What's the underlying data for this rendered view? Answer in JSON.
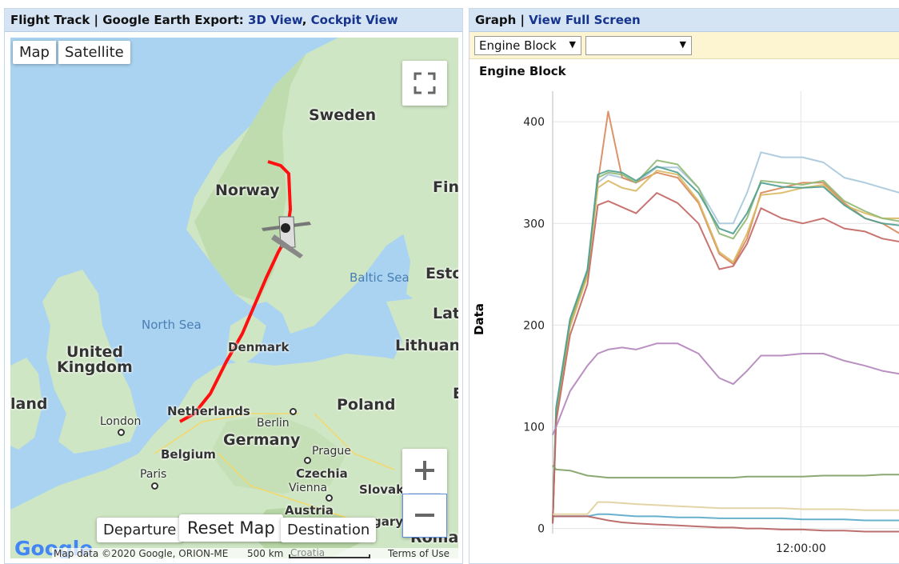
{
  "left_panel": {
    "header_prefix": "Flight Track | Google Earth Export: ",
    "link_3d": "3D View",
    "separator": ", ",
    "link_cockpit": "Cockpit View"
  },
  "map": {
    "map_type_map": "Map",
    "map_type_satellite": "Satellite",
    "fullscreen_icon": "fullscreen-icon",
    "zoom_in_icon": "plus-icon",
    "zoom_out_icon": "minus-icon",
    "departure_label": "Departure",
    "reset_label": "Reset Map",
    "destination_label": "Destination",
    "logo_text": "Google",
    "attribution_data": "Map data ©2020 Google, ORION-ME",
    "scale_label": "500 km",
    "terms": "Terms of Use",
    "labels": {
      "sweden": "Sweden",
      "norway": "Norway",
      "finland": "Finl",
      "estonia": "Esto",
      "latvia": "Latv",
      "lithuania": "Lithuania",
      "baltic_sea": "Baltic Sea",
      "north_sea": "North Sea",
      "denmark": "Denmark",
      "united_kingdom_1": "United",
      "united_kingdom_2": "Kingdom",
      "ireland": "land",
      "london": "London",
      "netherlands": "Netherlands",
      "berlin": "Berlin",
      "germany": "Germany",
      "poland": "Poland",
      "belgium": "Belgium",
      "paris": "Paris",
      "prague": "Prague",
      "czechia": "Czechia",
      "vienna": "Vienna",
      "slovakia": "Slovaki",
      "austria": "Austria",
      "hungary": "gary",
      "croatia": "Croatia",
      "romania": "Roman",
      "edge_e": "E"
    },
    "colors": {
      "water": "#a9d3f1",
      "land": "#cfe6c4",
      "track": "#ff1010"
    }
  },
  "right_panel": {
    "header_prefix": "Graph | ",
    "link_fullscreen": "View Full Screen",
    "select_1_value": "Engine Block",
    "select_2_value": "",
    "dropdown_icon": "triangle-down-icon"
  },
  "chart_data": {
    "type": "line",
    "title": "Engine Block",
    "ylabel": "Data",
    "xlabel": "",
    "ylim": [
      -5,
      430
    ],
    "yticks": [
      0,
      100,
      200,
      300,
      400
    ],
    "x_tick_label": "12:00:00",
    "x_tick_pos": 0.715,
    "grid": true,
    "legend": "none",
    "x": [
      0,
      0.01,
      0.05,
      0.1,
      0.13,
      0.16,
      0.2,
      0.24,
      0.3,
      0.36,
      0.42,
      0.48,
      0.52,
      0.56,
      0.6,
      0.66,
      0.72,
      0.78,
      0.84,
      0.9,
      0.95,
      1.0
    ],
    "series": [
      {
        "color": "#a6c8dc",
        "values": [
          5,
          120,
          205,
          255,
          340,
          348,
          345,
          340,
          355,
          355,
          335,
          300,
          300,
          330,
          370,
          365,
          365,
          360,
          345,
          340,
          335,
          330
        ]
      },
      {
        "color": "#d8875a",
        "values": [
          5,
          110,
          200,
          250,
          340,
          410,
          345,
          340,
          350,
          345,
          320,
          270,
          260,
          285,
          330,
          335,
          340,
          340,
          320,
          305,
          300,
          290
        ]
      },
      {
        "color": "#d9b860",
        "values": [
          5,
          112,
          198,
          248,
          335,
          342,
          335,
          332,
          352,
          348,
          322,
          272,
          262,
          290,
          328,
          330,
          335,
          338,
          318,
          310,
          305,
          305
        ]
      },
      {
        "color": "#8fb873",
        "values": [
          5,
          115,
          203,
          252,
          345,
          350,
          348,
          340,
          362,
          358,
          335,
          290,
          285,
          305,
          342,
          340,
          338,
          342,
          322,
          312,
          305,
          302
        ]
      },
      {
        "color": "#4f9e8f",
        "values": [
          5,
          118,
          206,
          254,
          348,
          352,
          350,
          342,
          356,
          350,
          330,
          295,
          290,
          310,
          340,
          336,
          335,
          336,
          318,
          305,
          300,
          298
        ]
      },
      {
        "color": "#c26662",
        "values": [
          5,
          105,
          190,
          240,
          318,
          322,
          316,
          310,
          330,
          320,
          300,
          255,
          258,
          280,
          315,
          305,
          300,
          305,
          295,
          292,
          285,
          282
        ]
      },
      {
        "color": "#b284bb",
        "values": [
          92,
          100,
          135,
          160,
          172,
          176,
          178,
          176,
          182,
          182,
          172,
          148,
          142,
          155,
          170,
          170,
          172,
          172,
          165,
          160,
          155,
          152
        ]
      },
      {
        "color": "#7e9e63",
        "values": [
          62,
          58,
          57,
          52,
          51,
          50,
          50,
          50,
          50,
          50,
          50,
          50,
          50,
          51,
          51,
          51,
          51,
          52,
          52,
          52,
          53,
          53
        ]
      },
      {
        "color": "#e0cf9c",
        "values": [
          14,
          14,
          14,
          14,
          26,
          26,
          25,
          24,
          23,
          22,
          21,
          20,
          20,
          20,
          20,
          20,
          19,
          19,
          19,
          18,
          18,
          18
        ]
      },
      {
        "color": "#56a8c8",
        "values": [
          12,
          12,
          12,
          12,
          14,
          14,
          13,
          12,
          12,
          11,
          11,
          10,
          10,
          10,
          10,
          10,
          9,
          9,
          9,
          8,
          8,
          8
        ]
      },
      {
        "color": "#b65f5f",
        "values": [
          12,
          12,
          12,
          12,
          10,
          8,
          6,
          5,
          4,
          3,
          2,
          1,
          1,
          0,
          0,
          -1,
          -1,
          -2,
          -2,
          -3,
          -3,
          -3
        ]
      }
    ]
  }
}
